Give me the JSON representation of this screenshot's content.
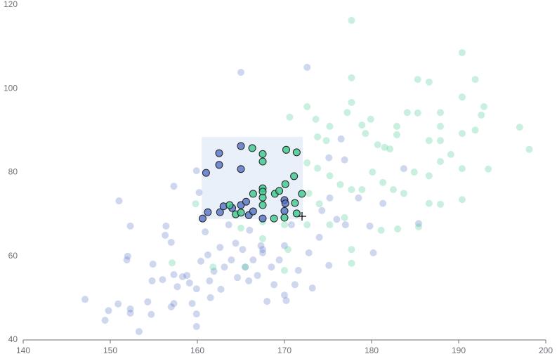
{
  "chart_data": {
    "type": "scatter",
    "xlim": [
      140,
      200
    ],
    "xticks": [
      140,
      150,
      160,
      170,
      180,
      190,
      200
    ],
    "ylim": [
      40,
      120
    ],
    "yticks": [
      40,
      60,
      80,
      100,
      120
    ],
    "brush": {
      "x": [
        160.5,
        172.1
      ],
      "y": [
        68.8,
        88.5
      ]
    },
    "series": [
      {
        "color": "#5470c6",
        "x": [
          160.6,
          161.2,
          161,
          162.5,
          162.5,
          162.6,
          163,
          164,
          165,
          165,
          165,
          165.6,
          165.9,
          166.4,
          167.5,
          170,
          170,
          170.1,
          147.1,
          149.4,
          149.8,
          151.0,
          152.3,
          152,
          151.9,
          150.9,
          152.3,
          152.3,
          153.3,
          154.3,
          154.7,
          154.9,
          154.8,
          156,
          156.3,
          156.4,
          157,
          157.3,
          157.3,
          157,
          157.3,
          157.7,
          158.3,
          158.8,
          159.1,
          159.4,
          159.9,
          159.9,
          159.9,
          159.9,
          160.2,
          160.4,
          160.9,
          161.2,
          161.4,
          161.5,
          161.9,
          162.6,
          162.7,
          163.1,
          163.6,
          163.9,
          164.4,
          164.6,
          165,
          165.2,
          165.5,
          165.9,
          166,
          166.4,
          166.9,
          167.3,
          167.5,
          167.5,
          168,
          168.5,
          168.8,
          169.4,
          170,
          170,
          170.2,
          170.8,
          171.2,
          171.6,
          172.6,
          172.8,
          173.2,
          174,
          174.3,
          175.1,
          175.2,
          176,
          176.5,
          177,
          178.5,
          179.8,
          180.2,
          181.3,
          183.7,
          185.4,
          175.1,
          176.9
        ],
        "values": [
          69.0,
          70.5,
          79.9,
          84.6,
          81.8,
          70.5,
          71.9,
          71.5,
          86.3,
          80.8,
          72.2,
          73,
          69.8,
          70.7,
          69.0,
          70.8,
          73.4,
          72.6,
          49.7,
          44.7,
          47.0,
          73.2,
          67.2,
          60,
          59.1,
          48.6,
          47.4,
          46.4,
          42.0,
          49.1,
          46.1,
          58.1,
          54.1,
          54.4,
          65,
          67.2,
          63.3,
          55.6,
          76.7,
          47.9,
          48.7,
          52.7,
          55.1,
          55.4,
          53.6,
          48.7,
          52.2,
          46.2,
          43.2,
          80.4,
          75.2,
          58.8,
          65.8,
          60.3,
          54.1,
          50.1,
          56.4,
          62.1,
          52.1,
          57.4,
          67.5,
          59.1,
          63.1,
          54.9,
          103.9,
          61.6,
          57.4,
          54.1,
          66.2,
          59.1,
          55.4,
          62.5,
          61.6,
          60.8,
          49.2,
          57.4,
          53.2,
          59.1,
          62.5,
          50.7,
          49.4,
          67.5,
          53.2,
          56.6,
          105.1,
          60.8,
          52.4,
          64.5,
          70.9,
          57.8,
          73.9,
          68.8,
          88.0,
          67.5,
          73.9,
          67.2,
          60.8,
          72.6,
          80.9,
          67.8,
          83.5,
          83.0
        ]
      },
      {
        "color": "#3cc88c",
        "x": [
          166.3,
          167.5,
          167.5,
          166.4,
          167.5,
          167.5,
          167.5,
          167.5,
          168.9,
          169.4,
          170.1,
          170.2,
          171.4,
          171.1,
          172,
          171.2,
          163.7,
          164.4,
          165,
          168.8,
          170,
          171.4,
          177.7,
          177.7,
          172.6,
          170.6,
          173.6,
          173.8,
          174.8,
          175.2,
          177.2,
          177.7,
          178.9,
          179.3,
          179.9,
          180.7,
          181.5,
          182.1,
          182.9,
          182.9,
          184.1,
          185.3,
          185.3,
          186.6,
          186.6,
          187.9,
          187.9,
          187.9,
          187.9,
          189.1,
          190.4,
          190.4,
          190.4,
          190.4,
          191.9,
          191.9,
          192.6,
          192.9,
          193.4,
          197.0,
          198.1,
          186.6,
          187.9,
          190.4,
          185.4,
          183,
          181.1,
          177.7,
          177.7,
          176.9,
          175.2,
          174,
          172.8,
          172.6,
          173.8,
          175.2,
          176.4,
          177.7,
          178.9,
          180.1,
          181.3,
          182.5,
          183.7,
          184.9,
          186.6,
          170,
          167.5,
          170,
          170.4,
          165.5,
          165,
          159.8,
          157.1,
          161.8,
          167.5,
          172.6
        ],
        "values": [
          85.8,
          84.4,
          82.6,
          74.9,
          76.2,
          75.4,
          74.0,
          72.2,
          74.9,
          75.6,
          77.2,
          85.4,
          84.8,
          79.1,
          74.9,
          72.7,
          72.2,
          70.0,
          70.4,
          69.0,
          69.2,
          70.2,
          116.3,
          102.6,
          95.7,
          93.2,
          92.7,
          88.5,
          87.6,
          91.0,
          94.3,
          96.7,
          91.3,
          89.3,
          92.7,
          86.6,
          86.0,
          85.6,
          91.0,
          89.0,
          94.3,
          102.2,
          94.2,
          101.6,
          87.6,
          94.3,
          91.0,
          87.6,
          82.6,
          84.3,
          108.6,
          98.0,
          89.3,
          80.9,
          102.2,
          90.1,
          93.7,
          95.7,
          80.8,
          90.8,
          85.5,
          72.6,
          72.4,
          73.5,
          67.0,
          66.5,
          66.2,
          58.3,
          61.6,
          69.2,
          67.5,
          72.5,
          75,
          82.3,
          81,
          79.2,
          77.1,
          75.9,
          75.9,
          80.1,
          77.6,
          75.9,
          75.0,
          80.1,
          79.2,
          67.5,
          64.2,
          56.6,
          61.6,
          57.4,
          66.7,
          72.5,
          58.4,
          57.4,
          68.2,
          67.5
        ]
      }
    ]
  }
}
